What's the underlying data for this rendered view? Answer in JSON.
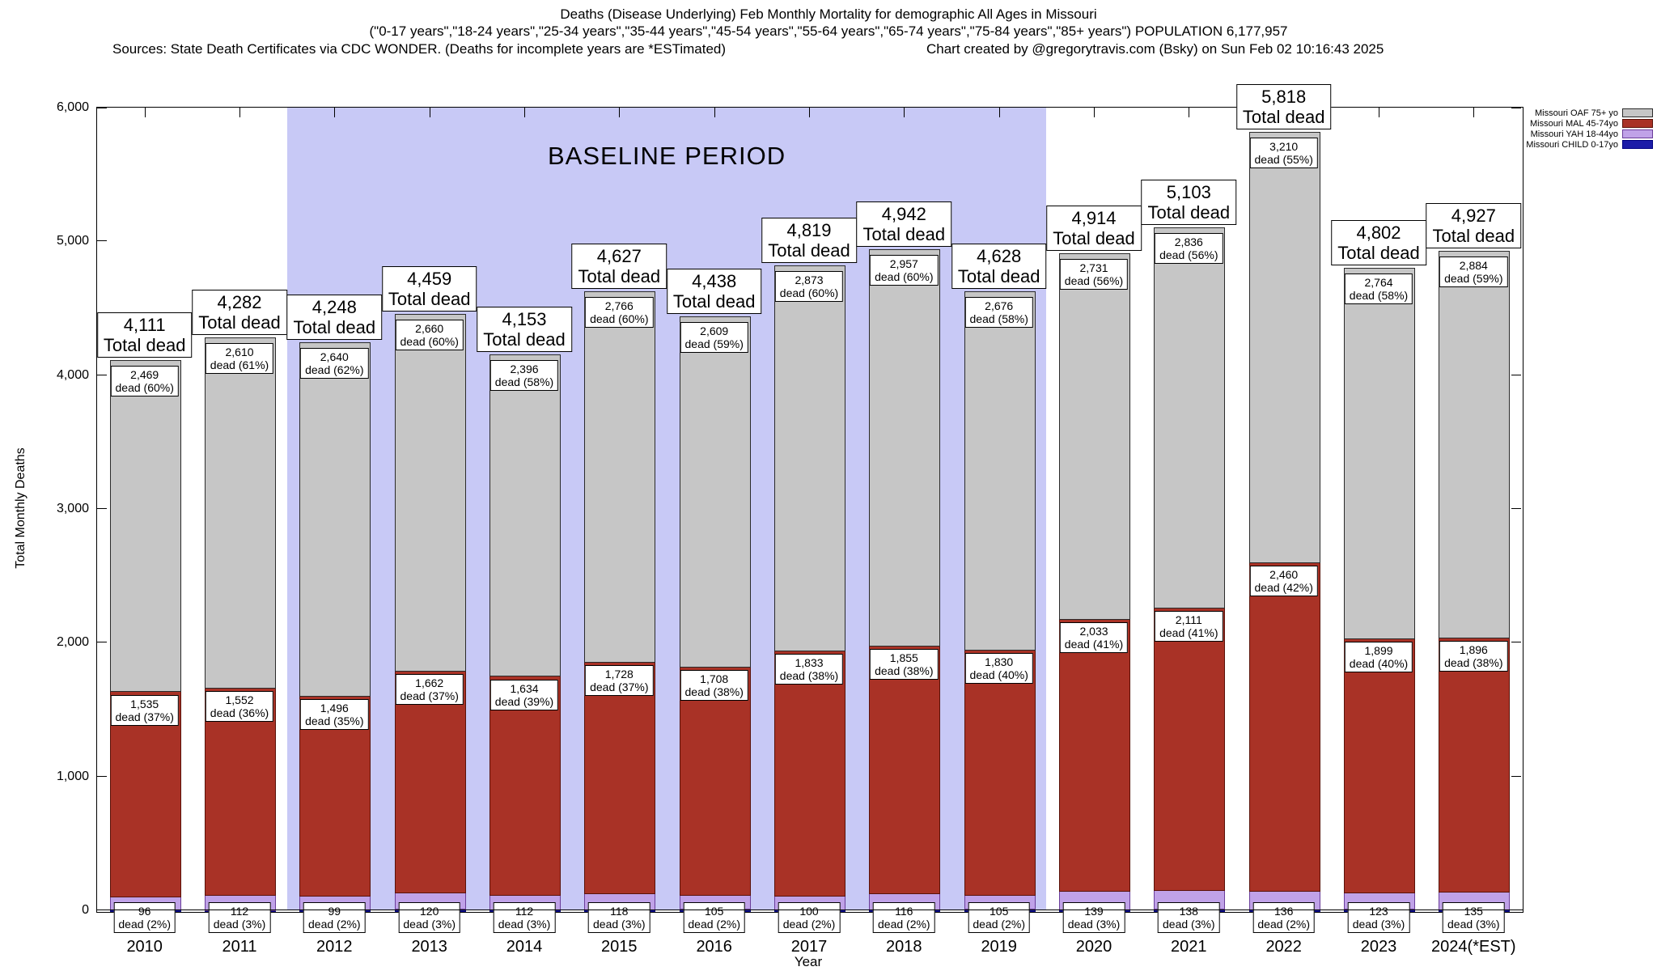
{
  "chart_data": {
    "type": "bar",
    "stacked": true,
    "title": "Deaths (Disease Underlying) Feb Monthly Mortality for demographic All Ages in Missouri",
    "subtitle": "(\"0-17 years\",\"18-24 years\",\"25-34 years\",\"35-44 years\",\"45-54 years\",\"55-64 years\",\"65-74 years\",\"75-84 years\",\"85+ years\") POPULATION 6,177,957",
    "sources_note": "Sources: State Death Certificates via CDC WONDER. (Deaths for incomplete years are *ESTimated)",
    "credit": "Chart created by @gregorytravis.com (Bsky) on Sun Feb 02 10:16:43 2025",
    "xlabel": "Year",
    "ylabel": "Total Monthly Deaths",
    "ylim": [
      0,
      6000
    ],
    "yticks": [
      0,
      1000,
      2000,
      3000,
      4000,
      5000,
      6000
    ],
    "ytick_labels": [
      "0",
      "1,000",
      "2,000",
      "3,000",
      "4,000",
      "5,000",
      "6,000"
    ],
    "total_dead_label": "Total dead",
    "baseline_period": {
      "label": "BASELINE PERIOD",
      "from_year": 2012,
      "to_year": 2019,
      "color": "#c8c9f6"
    },
    "categories": [
      "2010",
      "2011",
      "2012",
      "2013",
      "2014",
      "2015",
      "2016",
      "2017",
      "2018",
      "2019",
      "2020",
      "2021",
      "2022",
      "2023",
      "2024(*EST)"
    ],
    "totals": {
      "values": [
        4111,
        4282,
        4248,
        4459,
        4153,
        4627,
        4438,
        4819,
        4942,
        4628,
        4914,
        5103,
        5818,
        4802,
        4927
      ],
      "labels": [
        "4,111",
        "4,282",
        "4,248",
        "4,459",
        "4,153",
        "4,627",
        "4,438",
        "4,819",
        "4,942",
        "4,628",
        "4,914",
        "5,103",
        "5,818",
        "4,802",
        "4,927"
      ]
    },
    "series": [
      {
        "key": "oaf",
        "name": "Missouri OAF 75+ yo",
        "fill": "#c6c6c6",
        "border": "#2a2a2a",
        "values": [
          2469,
          2610,
          2640,
          2660,
          2396,
          2766,
          2609,
          2873,
          2957,
          2676,
          2731,
          2836,
          3210,
          2764,
          2884
        ],
        "labels": [
          "2,469",
          "2,610",
          "2,640",
          "2,660",
          "2,396",
          "2,766",
          "2,609",
          "2,873",
          "2,957",
          "2,676",
          "2,731",
          "2,836",
          "3,210",
          "2,764",
          "2,884"
        ],
        "pct_labels": [
          "dead (60%)",
          "dead (61%)",
          "dead (62%)",
          "dead (60%)",
          "dead (58%)",
          "dead (60%)",
          "dead (59%)",
          "dead (60%)",
          "dead (60%)",
          "dead (58%)",
          "dead (56%)",
          "dead (56%)",
          "dead (55%)",
          "dead (58%)",
          "dead (59%)"
        ]
      },
      {
        "key": "mal",
        "name": "Missouri MAL 45-74yo",
        "fill": "#a93226",
        "border": "#591209",
        "values": [
          1535,
          1552,
          1496,
          1662,
          1634,
          1728,
          1708,
          1833,
          1855,
          1830,
          2033,
          2111,
          2460,
          1899,
          1896
        ],
        "labels": [
          "1,535",
          "1,552",
          "1,496",
          "1,662",
          "1,634",
          "1,728",
          "1,708",
          "1,833",
          "1,855",
          "1,830",
          "2,033",
          "2,111",
          "2,460",
          "1,899",
          "1,896"
        ],
        "pct_labels": [
          "dead (37%)",
          "dead (36%)",
          "dead (35%)",
          "dead (37%)",
          "dead (39%)",
          "dead (37%)",
          "dead (38%)",
          "dead (38%)",
          "dead (38%)",
          "dead (40%)",
          "dead (41%)",
          "dead (41%)",
          "dead (42%)",
          "dead (40%)",
          "dead (38%)"
        ]
      },
      {
        "key": "yah",
        "name": "Missouri YAH 18-44yo",
        "fill": "#c0a2e8",
        "border": "#6a3d9a",
        "values": [
          96,
          112,
          99,
          120,
          112,
          118,
          105,
          100,
          116,
          105,
          139,
          138,
          136,
          123,
          135
        ],
        "labels": [
          "96",
          "112",
          "99",
          "120",
          "112",
          "118",
          "105",
          "100",
          "116",
          "105",
          "139",
          "138",
          "136",
          "123",
          "135"
        ],
        "pct_labels": [
          "dead (2%)",
          "dead (3%)",
          "dead (2%)",
          "dead (3%)",
          "dead (3%)",
          "dead (3%)",
          "dead (2%)",
          "dead (2%)",
          "dead (2%)",
          "dead (2%)",
          "dead (3%)",
          "dead (3%)",
          "dead (2%)",
          "dead (3%)",
          "dead (3%)"
        ]
      },
      {
        "key": "child",
        "name": "Missouri CHILD 0-17yo",
        "fill": "#1c1ca8",
        "border": "#000080"
      }
    ]
  }
}
